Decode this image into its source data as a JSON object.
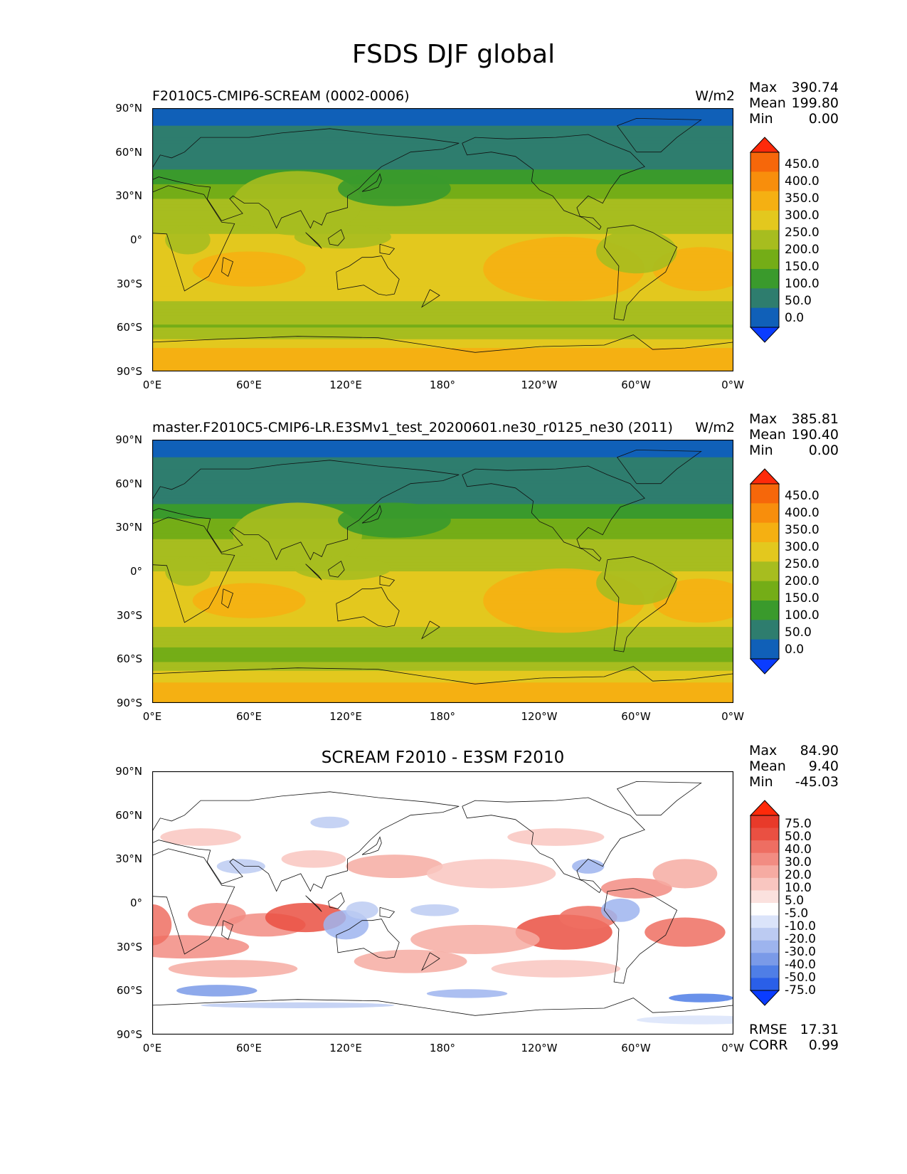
{
  "figure_title": "FSDS DJF global",
  "axes": {
    "lat_labels": [
      "90°N",
      "60°N",
      "30°N",
      "0°",
      "30°S",
      "60°S",
      "90°S"
    ],
    "lon_labels": [
      "0°E",
      "60°E",
      "120°E",
      "180°",
      "120°W",
      "60°W",
      "0°W"
    ]
  },
  "colors": {
    "fields": [
      "#0a3cff",
      "#1060b8",
      "#2e7d6e",
      "#3a9a2c",
      "#74ad17",
      "#a7bd1f",
      "#e3c81e",
      "#f5b012",
      "#f88e0c",
      "#f6670a",
      "#ff2a0a"
    ],
    "diff": [
      "#0a3cff",
      "#2a5fe8",
      "#4f7ee6",
      "#7a9ae8",
      "#9db4ee",
      "#bccbf2",
      "#dbe4fa",
      "#ffffff",
      "#fbe1de",
      "#f9c6c0",
      "#f6aba2",
      "#f28c82",
      "#ee6e62",
      "#ea5042",
      "#e83a2a",
      "#ff2a0a"
    ]
  },
  "panels": [
    {
      "title": "F2010C5-CMIP6-SCREAM (0002-0006)",
      "units": "W/m2",
      "stats": [
        {
          "label": "Max",
          "value": "390.74"
        },
        {
          "label": "Mean",
          "value": "199.80"
        },
        {
          "label": "Min",
          "value": "0.00"
        }
      ],
      "colorbar_levels": [
        "450.0",
        "400.0",
        "350.0",
        "300.0",
        "250.0",
        "200.0",
        "150.0",
        "100.0",
        "50.0",
        "0.0"
      ]
    },
    {
      "title": "master.F2010C5-CMIP6-LR.E3SMv1_test_20200601.ne30_r0125_ne30 (2011)",
      "units": "W/m2",
      "stats": [
        {
          "label": "Max",
          "value": "385.81"
        },
        {
          "label": "Mean",
          "value": "190.40"
        },
        {
          "label": "Min",
          "value": "0.00"
        }
      ],
      "colorbar_levels": [
        "450.0",
        "400.0",
        "350.0",
        "300.0",
        "250.0",
        "200.0",
        "150.0",
        "100.0",
        "50.0",
        "0.0"
      ]
    },
    {
      "title": "SCREAM F2010 - E3SM F2010",
      "units": "",
      "stats": [
        {
          "label": "Max",
          "value": "84.90"
        },
        {
          "label": "Mean",
          "value": "9.40"
        },
        {
          "label": "Min",
          "value": "-45.03"
        }
      ],
      "colorbar_levels": [
        "75.0",
        "50.0",
        "40.0",
        "30.0",
        "20.0",
        "10.0",
        "5.0",
        "-5.0",
        "-10.0",
        "-20.0",
        "-30.0",
        "-40.0",
        "-50.0",
        "-75.0"
      ],
      "metrics": [
        {
          "label": "RMSE",
          "value": "17.31"
        },
        {
          "label": "CORR",
          "value": "0.99"
        }
      ]
    }
  ],
  "chart_data": [
    {
      "type": "heatmap",
      "title": "F2010C5-CMIP6-SCREAM (0002-0006)",
      "units": "W/m2",
      "x": [
        "0°E",
        "60°E",
        "120°E",
        "180°",
        "120°W",
        "60°W",
        "0°W"
      ],
      "y": [
        "90°N",
        "60°N",
        "30°N",
        "0°",
        "30°S",
        "60°S",
        "90°S"
      ],
      "xlim": [
        0,
        360
      ],
      "ylim": [
        -90,
        90
      ],
      "zonal_band_approx": {
        "lat": [
          87,
          75,
          60,
          45,
          35,
          25,
          10,
          0,
          -10,
          -20,
          -30,
          -40,
          -50,
          -60,
          -70,
          -80,
          -88
        ],
        "value": [
          10,
          60,
          70,
          110,
          170,
          210,
          235,
          260,
          275,
          290,
          290,
          260,
          215,
          195,
          270,
          335,
          345
        ]
      },
      "max": 390.74,
      "mean": 199.8,
      "min": 0.0,
      "colorbar_levels": [
        0,
        50,
        100,
        150,
        200,
        250,
        300,
        350,
        400,
        450
      ]
    },
    {
      "type": "heatmap",
      "title": "master.F2010C5-CMIP6-LR.E3SMv1_test_20200601.ne30_r0125_ne30 (2011)",
      "units": "W/m2",
      "x": [
        "0°E",
        "60°E",
        "120°E",
        "180°",
        "120°W",
        "60°W",
        "0°W"
      ],
      "y": [
        "90°N",
        "60°N",
        "30°N",
        "0°",
        "30°S",
        "60°S",
        "90°S"
      ],
      "xlim": [
        0,
        360
      ],
      "ylim": [
        -90,
        90
      ],
      "zonal_band_approx": {
        "lat": [
          87,
          75,
          60,
          45,
          35,
          25,
          10,
          0,
          -10,
          -20,
          -30,
          -40,
          -50,
          -60,
          -70,
          -80,
          -88
        ],
        "value": [
          10,
          60,
          70,
          100,
          150,
          195,
          220,
          250,
          265,
          275,
          270,
          245,
          205,
          185,
          260,
          325,
          335
        ]
      },
      "max": 385.81,
      "mean": 190.4,
      "min": 0.0,
      "colorbar_levels": [
        0,
        50,
        100,
        150,
        200,
        250,
        300,
        350,
        400,
        450
      ]
    },
    {
      "type": "heatmap",
      "title": "SCREAM F2010 - E3SM F2010",
      "x": [
        "0°E",
        "60°E",
        "120°E",
        "180°",
        "120°W",
        "60°W",
        "0°W"
      ],
      "y": [
        "90°N",
        "60°N",
        "30°N",
        "0°",
        "30°S",
        "60°S",
        "90°S"
      ],
      "xlim": [
        0,
        360
      ],
      "ylim": [
        -90,
        90
      ],
      "max": 84.9,
      "mean": 9.4,
      "min": -45.03,
      "rmse": 17.31,
      "corr": 0.99,
      "colorbar_levels": [
        -75,
        -50,
        -40,
        -30,
        -20,
        -10,
        -5,
        5,
        10,
        20,
        30,
        40,
        50,
        75
      ]
    }
  ]
}
